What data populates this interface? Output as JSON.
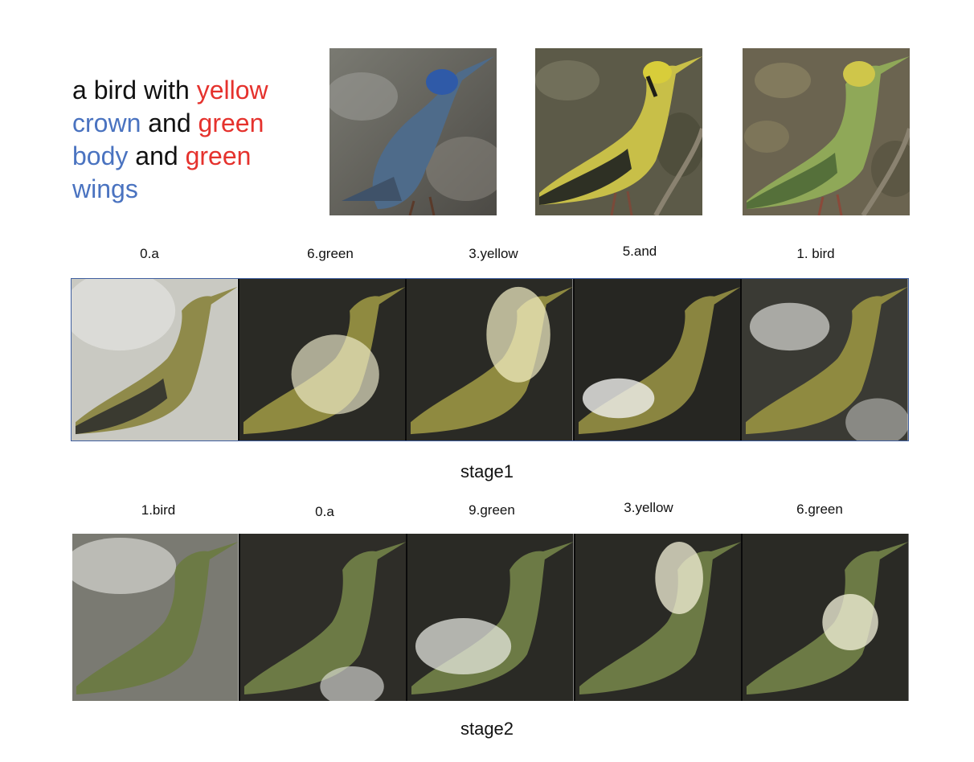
{
  "caption": {
    "words": [
      {
        "text": "a bird with ",
        "color": "#111111"
      },
      {
        "text": "yellow",
        "color": "#e5322d"
      },
      {
        "text": " crown",
        "color": "#4a73c0"
      },
      {
        "text": " and ",
        "color": "#111111"
      },
      {
        "text": "green",
        "color": "#e5322d"
      },
      {
        "text": " body",
        "color": "#4a73c0"
      },
      {
        "text": " and ",
        "color": "#111111"
      },
      {
        "text": "green",
        "color": "#e5322d"
      },
      {
        "text": " wings",
        "color": "#4a73c0"
      }
    ]
  },
  "stage1": {
    "title": "stage1",
    "labels": [
      "0.a",
      "6.green",
      "3.yellow",
      "5.and",
      "1. bird"
    ]
  },
  "stage2": {
    "title": "stage2",
    "labels": [
      "1.bird",
      "0.a",
      "9.green",
      "3.yellow",
      "6.green"
    ]
  },
  "colors": {
    "text_black": "#111111",
    "text_red": "#e5322d",
    "text_blue": "#4a73c0",
    "strip_border": "#3f5f9f"
  }
}
